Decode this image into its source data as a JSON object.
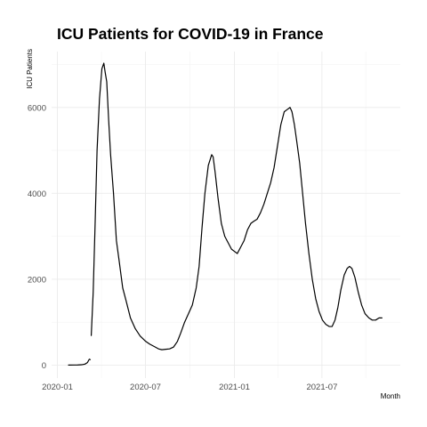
{
  "chart_data": {
    "type": "line",
    "title": "ICU Patients for COVID-19 in France",
    "xlabel": "Month",
    "ylabel": "ICU Patients",
    "x_ticks": [
      "2020-01",
      "2020-07",
      "2021-01",
      "2021-07"
    ],
    "y_ticks": [
      0,
      2000,
      4000,
      6000
    ],
    "xlim": [
      "2019-12-20",
      "2021-12-10"
    ],
    "ylim": [
      -300,
      7300
    ],
    "grid": true,
    "legend": "none",
    "colors": {
      "line": "#000000",
      "grid": "#ebebeb"
    },
    "series": [
      {
        "segments": [
          [
            [
              "2020-01-24",
              3
            ],
            [
              "2020-02-05",
              4
            ],
            [
              "2020-02-12",
              5
            ],
            [
              "2020-02-20",
              10
            ],
            [
              "2020-02-27",
              25
            ],
            [
              "2020-03-03",
              60
            ],
            [
              "2020-03-07",
              140
            ],
            [
              "2020-03-09",
              130
            ]
          ],
          [
            [
              "2020-03-11",
              690
            ],
            [
              "2020-03-15",
              1700
            ],
            [
              "2020-03-19",
              3300
            ],
            [
              "2020-03-23",
              5000
            ],
            [
              "2020-03-28",
              6200
            ],
            [
              "2020-04-02",
              6900
            ],
            [
              "2020-04-06",
              7030
            ],
            [
              "2020-04-09",
              6800
            ],
            [
              "2020-04-12",
              6600
            ],
            [
              "2020-04-16",
              5700
            ],
            [
              "2020-04-20",
              4900
            ],
            [
              "2020-04-26",
              4000
            ],
            [
              "2020-05-02",
              2900
            ],
            [
              "2020-05-08",
              2400
            ],
            [
              "2020-05-15",
              1800
            ],
            [
              "2020-05-22",
              1500
            ],
            [
              "2020-05-31",
              1100
            ],
            [
              "2020-06-10",
              850
            ],
            [
              "2020-06-20",
              680
            ],
            [
              "2020-07-01",
              560
            ],
            [
              "2020-07-10",
              490
            ],
            [
              "2020-07-20",
              430
            ],
            [
              "2020-07-28",
              380
            ],
            [
              "2020-08-04",
              360
            ],
            [
              "2020-08-12",
              370
            ],
            [
              "2020-08-20",
              380
            ],
            [
              "2020-08-28",
              420
            ],
            [
              "2020-09-05",
              550
            ],
            [
              "2020-09-12",
              750
            ],
            [
              "2020-09-20",
              1000
            ],
            [
              "2020-09-28",
              1200
            ],
            [
              "2020-10-06",
              1400
            ],
            [
              "2020-10-14",
              1800
            ],
            [
              "2020-10-20",
              2300
            ],
            [
              "2020-10-26",
              3200
            ],
            [
              "2020-11-01",
              4000
            ],
            [
              "2020-11-08",
              4650
            ],
            [
              "2020-11-15",
              4900
            ],
            [
              "2020-11-18",
              4850
            ],
            [
              "2020-11-22",
              4500
            ],
            [
              "2020-11-28",
              3900
            ],
            [
              "2020-12-05",
              3300
            ],
            [
              "2020-12-12",
              3000
            ],
            [
              "2020-12-19",
              2850
            ],
            [
              "2020-12-26",
              2700
            ],
            [
              "2021-01-01",
              2650
            ],
            [
              "2021-01-07",
              2600
            ],
            [
              "2021-01-14",
              2750
            ],
            [
              "2021-01-21",
              2900
            ],
            [
              "2021-01-28",
              3150
            ],
            [
              "2021-02-04",
              3300
            ],
            [
              "2021-02-10",
              3350
            ],
            [
              "2021-02-17",
              3400
            ],
            [
              "2021-02-24",
              3550
            ],
            [
              "2021-03-03",
              3750
            ],
            [
              "2021-03-10",
              4000
            ],
            [
              "2021-03-17",
              4250
            ],
            [
              "2021-03-24",
              4600
            ],
            [
              "2021-03-31",
              5100
            ],
            [
              "2021-04-07",
              5600
            ],
            [
              "2021-04-14",
              5900
            ],
            [
              "2021-04-20",
              5950
            ],
            [
              "2021-04-26",
              6000
            ],
            [
              "2021-04-30",
              5900
            ],
            [
              "2021-05-05",
              5600
            ],
            [
              "2021-05-10",
              5200
            ],
            [
              "2021-05-16",
              4700
            ],
            [
              "2021-05-22",
              4000
            ],
            [
              "2021-05-28",
              3300
            ],
            [
              "2021-06-04",
              2600
            ],
            [
              "2021-06-11",
              2000
            ],
            [
              "2021-06-18",
              1550
            ],
            [
              "2021-06-25",
              1250
            ],
            [
              "2021-07-02",
              1050
            ],
            [
              "2021-07-09",
              950
            ],
            [
              "2021-07-16",
              900
            ],
            [
              "2021-07-22",
              900
            ],
            [
              "2021-07-28",
              1050
            ],
            [
              "2021-08-03",
              1350
            ],
            [
              "2021-08-09",
              1750
            ],
            [
              "2021-08-16",
              2100
            ],
            [
              "2021-08-22",
              2250
            ],
            [
              "2021-08-27",
              2300
            ],
            [
              "2021-09-01",
              2250
            ],
            [
              "2021-09-07",
              2050
            ],
            [
              "2021-09-14",
              1700
            ],
            [
              "2021-09-21",
              1400
            ],
            [
              "2021-09-28",
              1200
            ],
            [
              "2021-10-06",
              1100
            ],
            [
              "2021-10-13",
              1050
            ],
            [
              "2021-10-20",
              1050
            ],
            [
              "2021-10-27",
              1100
            ],
            [
              "2021-11-02",
              1100
            ]
          ]
        ]
      }
    ]
  }
}
